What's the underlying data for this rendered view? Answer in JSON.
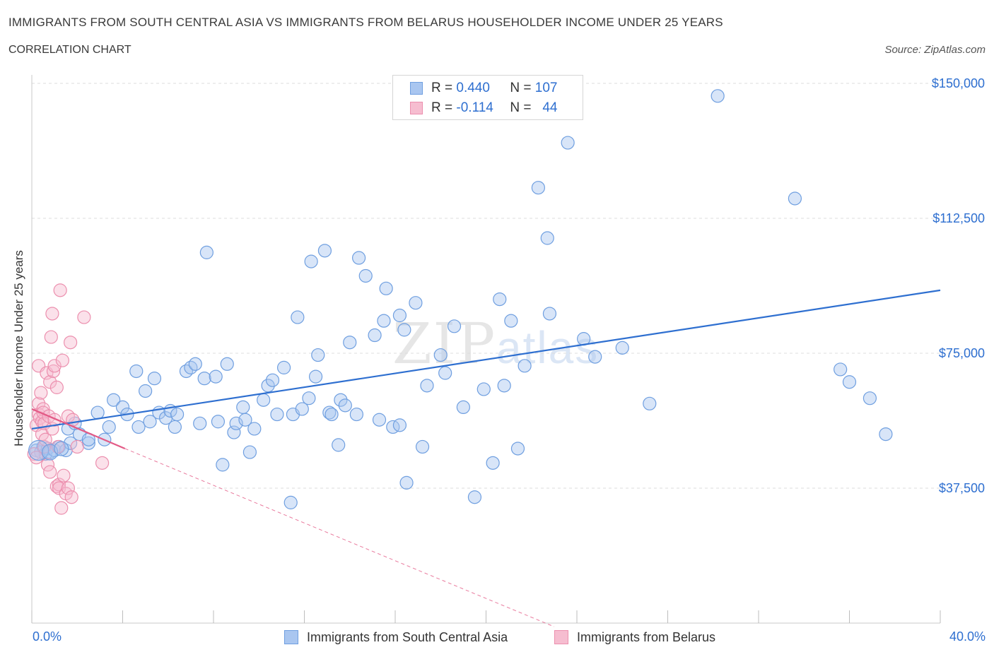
{
  "title": "IMMIGRANTS FROM SOUTH CENTRAL ASIA VS IMMIGRANTS FROM BELARUS HOUSEHOLDER INCOME UNDER 25 YEARS",
  "subtitle": "CORRELATION CHART",
  "source": "Source: ZipAtlas.com",
  "watermark": {
    "main": "ZIP",
    "accent": "atlas"
  },
  "legend": {
    "rows": [
      {
        "r_label": "R =",
        "r_value": "0.440",
        "n_label": "N =",
        "n_value": "107",
        "color": "#7aa8e8"
      },
      {
        "r_label": "R =",
        "r_value": "-0.114",
        "n_label": "N =",
        "n_value": "44",
        "color": "#f0a0b8"
      }
    ]
  },
  "bottom_legend": {
    "series1": "Immigrants from South Central Asia",
    "series2": "Immigrants from Belarus"
  },
  "colors": {
    "blue_fill": "#a9c6f0",
    "blue_stroke": "#6f9fe0",
    "blue_line": "#2e6fd0",
    "pink_fill": "#f6bdd0",
    "pink_stroke": "#ec8fae",
    "pink_line": "#e35a86",
    "grid": "#dcdcdc",
    "tick_text": "#2e6fd0"
  },
  "chart_data": {
    "type": "scatter",
    "ylabel": "Householder Income Under 25 years",
    "xlabel": "",
    "xlim": [
      0,
      40
    ],
    "ylim": [
      0,
      150000
    ],
    "x_tick_labels": [
      "0.0%",
      "40.0%"
    ],
    "y_ticks": [
      37500,
      75000,
      112500,
      150000
    ],
    "y_tick_labels": [
      "$37,500",
      "$75,000",
      "$112,500",
      "$150,000"
    ],
    "grid": true,
    "series": [
      {
        "name": "Immigrants from South Central Asia",
        "color": "#7aa8e8",
        "trend": {
          "x": [
            0,
            40
          ],
          "y": [
            54000,
            92500
          ],
          "style": "solid"
        },
        "points": [
          [
            0.2,
            48000
          ],
          [
            0.4,
            47500
          ],
          [
            0.5,
            49000
          ],
          [
            0.6,
            47000
          ],
          [
            0.7,
            48500
          ],
          [
            0.8,
            47500
          ],
          [
            1.0,
            48000
          ],
          [
            1.2,
            49000
          ],
          [
            1.5,
            48000
          ],
          [
            1.6,
            54000
          ],
          [
            1.7,
            50000
          ],
          [
            1.9,
            55500
          ],
          [
            2.1,
            52500
          ],
          [
            2.5,
            50000
          ],
          [
            2.5,
            51000
          ],
          [
            2.9,
            58500
          ],
          [
            3.2,
            51000
          ],
          [
            3.4,
            54500
          ],
          [
            3.6,
            62000
          ],
          [
            4.0,
            60000
          ],
          [
            4.2,
            58000
          ],
          [
            4.6,
            70000
          ],
          [
            4.7,
            54500
          ],
          [
            5.0,
            64500
          ],
          [
            5.2,
            56000
          ],
          [
            5.4,
            68000
          ],
          [
            5.6,
            58500
          ],
          [
            5.9,
            57000
          ],
          [
            6.1,
            59000
          ],
          [
            6.3,
            54500
          ],
          [
            6.4,
            58000
          ],
          [
            6.8,
            70000
          ],
          [
            7.0,
            71000
          ],
          [
            7.2,
            72000
          ],
          [
            7.4,
            55500
          ],
          [
            7.6,
            68000
          ],
          [
            7.7,
            103000
          ],
          [
            8.1,
            68500
          ],
          [
            8.2,
            56000
          ],
          [
            8.4,
            44000
          ],
          [
            8.6,
            72000
          ],
          [
            8.9,
            53000
          ],
          [
            9.0,
            55500
          ],
          [
            9.3,
            60000
          ],
          [
            9.4,
            56500
          ],
          [
            9.6,
            47500
          ],
          [
            9.8,
            54000
          ],
          [
            10.2,
            62000
          ],
          [
            10.4,
            66000
          ],
          [
            10.6,
            67500
          ],
          [
            10.8,
            58000
          ],
          [
            11.1,
            71000
          ],
          [
            11.4,
            33500
          ],
          [
            11.5,
            58000
          ],
          [
            11.7,
            85000
          ],
          [
            11.9,
            59500
          ],
          [
            12.2,
            62500
          ],
          [
            12.3,
            100500
          ],
          [
            12.5,
            68500
          ],
          [
            12.6,
            74500
          ],
          [
            12.9,
            103500
          ],
          [
            13.1,
            58500
          ],
          [
            13.2,
            58000
          ],
          [
            13.5,
            49500
          ],
          [
            13.6,
            62000
          ],
          [
            13.8,
            60500
          ],
          [
            14.0,
            78000
          ],
          [
            14.3,
            58000
          ],
          [
            14.4,
            101500
          ],
          [
            14.7,
            96500
          ],
          [
            15.1,
            80000
          ],
          [
            15.3,
            56500
          ],
          [
            15.5,
            84000
          ],
          [
            15.6,
            93000
          ],
          [
            15.9,
            54500
          ],
          [
            16.2,
            85500
          ],
          [
            16.2,
            55000
          ],
          [
            16.4,
            81500
          ],
          [
            16.5,
            39000
          ],
          [
            16.9,
            89000
          ],
          [
            17.2,
            49000
          ],
          [
            17.4,
            66000
          ],
          [
            18.0,
            74500
          ],
          [
            18.2,
            69500
          ],
          [
            18.6,
            82500
          ],
          [
            19.0,
            60000
          ],
          [
            19.5,
            35000
          ],
          [
            19.9,
            65000
          ],
          [
            20.3,
            44500
          ],
          [
            20.6,
            90000
          ],
          [
            20.8,
            66000
          ],
          [
            21.1,
            84000
          ],
          [
            21.4,
            48500
          ],
          [
            21.7,
            71500
          ],
          [
            22.3,
            121000
          ],
          [
            22.7,
            107000
          ],
          [
            22.8,
            86000
          ],
          [
            23.6,
            133500
          ],
          [
            24.3,
            79000
          ],
          [
            24.8,
            74000
          ],
          [
            26.0,
            76500
          ],
          [
            27.2,
            61000
          ],
          [
            30.2,
            146500
          ],
          [
            33.6,
            118000
          ],
          [
            35.6,
            70500
          ],
          [
            36.0,
            67000
          ],
          [
            36.9,
            62500
          ],
          [
            37.6,
            52500
          ]
        ]
      },
      {
        "name": "Immigrants from Belarus",
        "color": "#f0a0b8",
        "trend": {
          "x": [
            0,
            4.1
          ],
          "y": [
            59500,
            48500
          ],
          "style": "solid",
          "extended": {
            "x": [
              4.1,
              23
            ],
            "y": [
              48500,
              -1000
            ],
            "style": "dashed"
          }
        },
        "points": [
          [
            0.1,
            47000
          ],
          [
            0.2,
            46000
          ],
          [
            0.2,
            55000
          ],
          [
            0.3,
            71500
          ],
          [
            0.3,
            61000
          ],
          [
            0.3,
            58000
          ],
          [
            0.35,
            57000
          ],
          [
            0.4,
            64000
          ],
          [
            0.45,
            56000
          ],
          [
            0.45,
            52500
          ],
          [
            0.5,
            59500
          ],
          [
            0.5,
            58500
          ],
          [
            0.55,
            55500
          ],
          [
            0.55,
            49000
          ],
          [
            0.6,
            51000
          ],
          [
            0.65,
            69500
          ],
          [
            0.7,
            44000
          ],
          [
            0.75,
            57500
          ],
          [
            0.8,
            67000
          ],
          [
            0.8,
            42000
          ],
          [
            0.85,
            79500
          ],
          [
            0.9,
            86000
          ],
          [
            0.9,
            54000
          ],
          [
            0.95,
            70000
          ],
          [
            1.0,
            71500
          ],
          [
            1.0,
            56500
          ],
          [
            1.1,
            65500
          ],
          [
            1.1,
            38000
          ],
          [
            1.15,
            49000
          ],
          [
            1.2,
            38500
          ],
          [
            1.2,
            37500
          ],
          [
            1.25,
            92500
          ],
          [
            1.3,
            32000
          ],
          [
            1.35,
            73000
          ],
          [
            1.4,
            41000
          ],
          [
            1.5,
            36000
          ],
          [
            1.6,
            37500
          ],
          [
            1.6,
            57500
          ],
          [
            1.7,
            78000
          ],
          [
            1.75,
            35000
          ],
          [
            1.8,
            56500
          ],
          [
            2.0,
            49000
          ],
          [
            2.3,
            85000
          ],
          [
            3.1,
            44500
          ]
        ]
      }
    ]
  }
}
